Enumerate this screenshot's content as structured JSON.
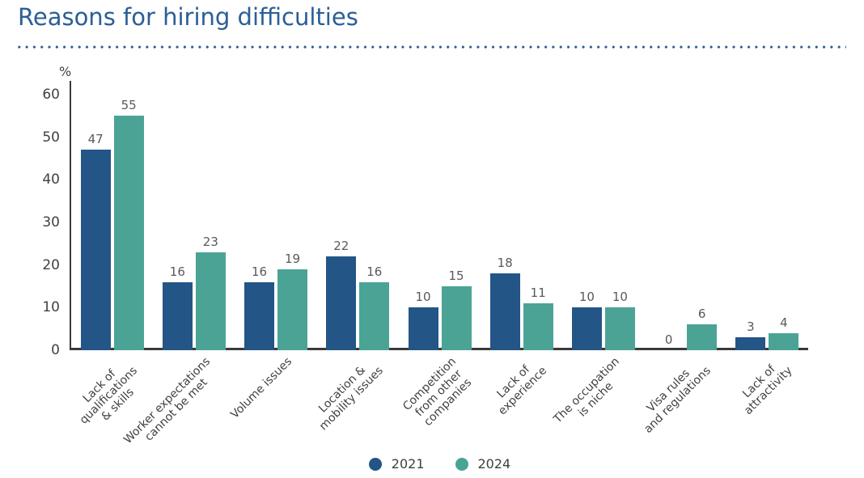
{
  "chart_data": {
    "type": "bar",
    "title": "Reasons for hiring difficulties",
    "unit_label": "%",
    "xlabel": "",
    "ylabel": "%",
    "categories": [
      "Lack of\nqualifications\n& skills",
      "Worker expectations\ncannot be met",
      "Volume issues",
      "Location &\nmobility issues",
      "Competition\nfrom other\ncompanies",
      "Lack of\nexperience",
      "The occupation\nis niche",
      "Visa rules\nand regulations",
      "Lack of\nattractivity"
    ],
    "series": [
      {
        "name": "2021",
        "color": "#235587",
        "values": [
          47,
          16,
          16,
          22,
          10,
          18,
          10,
          0,
          3
        ]
      },
      {
        "name": "2024",
        "color": "#4BA396",
        "values": [
          55,
          23,
          19,
          16,
          15,
          11,
          10,
          6,
          4
        ]
      }
    ],
    "ylim": [
      0,
      60
    ],
    "yticks": [
      0,
      10,
      20,
      30,
      40,
      50,
      60
    ],
    "grid": false,
    "value_labels": true,
    "legend_position": "bottom-center"
  },
  "colors": {
    "title": "#2A5E97",
    "dotted_rule": "#2A5E97",
    "axis": "#3A3A3A",
    "tick_label": "#404040",
    "category_label": "#404040",
    "value_label": "#595959",
    "legend_text": "#3F3F3F",
    "background": "#FFFFFF"
  }
}
